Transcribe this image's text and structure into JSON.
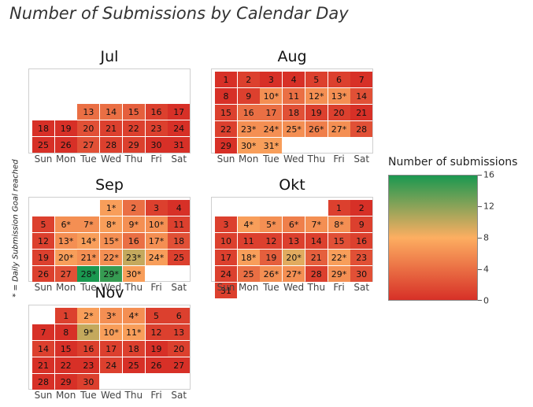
{
  "chart_data": {
    "type": "heatmap",
    "title": "Number of Submissions by Calendar Day",
    "side_note": "* = Daily Submission Goal reached",
    "weekdays": [
      "Sun",
      "Mon",
      "Tue",
      "Wed",
      "Thu",
      "Fri",
      "Sat"
    ],
    "colorbar": {
      "title": "Number of submissions",
      "range": [
        0,
        16
      ],
      "ticks": [
        "0",
        "4",
        "8",
        "12",
        "16"
      ],
      "colors": {
        "low": "#d73027",
        "mid": "#fdae61",
        "high": "#1a9850"
      }
    },
    "months": [
      {
        "name": "Jul",
        "first_weekday": 2,
        "days": [
          {
            "label": "13",
            "value": 4
          },
          {
            "label": "14",
            "value": 4
          },
          {
            "label": "15",
            "value": 3
          },
          {
            "label": "16",
            "value": 1
          },
          {
            "label": "17",
            "value": 0
          },
          {
            "label": "18",
            "value": 0
          },
          {
            "label": "19",
            "value": 0
          },
          {
            "label": "20",
            "value": 2
          },
          {
            "label": "21",
            "value": 1
          },
          {
            "label": "22",
            "value": 1
          },
          {
            "label": "23",
            "value": 1
          },
          {
            "label": "24",
            "value": 0
          },
          {
            "label": "25",
            "value": 0
          },
          {
            "label": "26",
            "value": 0
          },
          {
            "label": "27",
            "value": 2
          },
          {
            "label": "28",
            "value": 1
          },
          {
            "label": "29",
            "value": 1
          },
          {
            "label": "30",
            "value": 0
          },
          {
            "label": "31",
            "value": 0
          }
        ]
      },
      {
        "name": "Aug",
        "first_weekday": 0,
        "days": [
          {
            "label": "1",
            "value": 0
          },
          {
            "label": "2",
            "value": 1
          },
          {
            "label": "3",
            "value": 0
          },
          {
            "label": "4",
            "value": 0
          },
          {
            "label": "5",
            "value": 1
          },
          {
            "label": "6",
            "value": 1
          },
          {
            "label": "7",
            "value": 0
          },
          {
            "label": "8",
            "value": 0
          },
          {
            "label": "9",
            "value": 1
          },
          {
            "label": "10*",
            "value": 6
          },
          {
            "label": "11",
            "value": 4
          },
          {
            "label": "12*",
            "value": 6
          },
          {
            "label": "13*",
            "value": 6
          },
          {
            "label": "14",
            "value": 2
          },
          {
            "label": "15",
            "value": 1
          },
          {
            "label": "16",
            "value": 4
          },
          {
            "label": "17",
            "value": 4
          },
          {
            "label": "18",
            "value": 2
          },
          {
            "label": "19",
            "value": 1
          },
          {
            "label": "20",
            "value": 1
          },
          {
            "label": "21",
            "value": 0
          },
          {
            "label": "22",
            "value": 1
          },
          {
            "label": "23*",
            "value": 6
          },
          {
            "label": "24*",
            "value": 6
          },
          {
            "label": "25*",
            "value": 6
          },
          {
            "label": "26*",
            "value": 5
          },
          {
            "label": "27*",
            "value": 6
          },
          {
            "label": "28",
            "value": 2
          },
          {
            "label": "29",
            "value": 0
          },
          {
            "label": "30*",
            "value": 7
          },
          {
            "label": "31*",
            "value": 7
          }
        ]
      },
      {
        "name": "Sep",
        "first_weekday": 3,
        "days": [
          {
            "label": "1*",
            "value": 7
          },
          {
            "label": "2",
            "value": 4
          },
          {
            "label": "3",
            "value": 1
          },
          {
            "label": "4",
            "value": 0
          },
          {
            "label": "5",
            "value": 1
          },
          {
            "label": "6*",
            "value": 6
          },
          {
            "label": "7*",
            "value": 6
          },
          {
            "label": "8*",
            "value": 7
          },
          {
            "label": "9*",
            "value": 6
          },
          {
            "label": "10*",
            "value": 6
          },
          {
            "label": "11",
            "value": 1
          },
          {
            "label": "12",
            "value": 1
          },
          {
            "label": "13*",
            "value": 6
          },
          {
            "label": "14*",
            "value": 7
          },
          {
            "label": "15*",
            "value": 6
          },
          {
            "label": "16",
            "value": 4
          },
          {
            "label": "17*",
            "value": 6
          },
          {
            "label": "18",
            "value": 2
          },
          {
            "label": "19",
            "value": 1
          },
          {
            "label": "20*",
            "value": 7
          },
          {
            "label": "21*",
            "value": 6
          },
          {
            "label": "22*",
            "value": 6
          },
          {
            "label": "23*",
            "value": 10
          },
          {
            "label": "24*",
            "value": 7
          },
          {
            "label": "25",
            "value": 1
          },
          {
            "label": "26",
            "value": 1
          },
          {
            "label": "27",
            "value": 2
          },
          {
            "label": "28*",
            "value": 16
          },
          {
            "label": "29*",
            "value": 15
          },
          {
            "label": "30*",
            "value": 7
          }
        ]
      },
      {
        "name": "Okt",
        "first_weekday": 5,
        "days": [
          {
            "label": "1",
            "value": 1
          },
          {
            "label": "2",
            "value": 0
          },
          {
            "label": "3",
            "value": 1
          },
          {
            "label": "4*",
            "value": 7
          },
          {
            "label": "5*",
            "value": 6
          },
          {
            "label": "6*",
            "value": 5
          },
          {
            "label": "7*",
            "value": 6
          },
          {
            "label": "8*",
            "value": 6
          },
          {
            "label": "9",
            "value": 1
          },
          {
            "label": "10",
            "value": 1
          },
          {
            "label": "11",
            "value": 1
          },
          {
            "label": "12",
            "value": 1
          },
          {
            "label": "13",
            "value": 1
          },
          {
            "label": "14",
            "value": 1
          },
          {
            "label": "15",
            "value": 2
          },
          {
            "label": "16",
            "value": 1
          },
          {
            "label": "17",
            "value": 1
          },
          {
            "label": "18*",
            "value": 7
          },
          {
            "label": "19",
            "value": 3
          },
          {
            "label": "20*",
            "value": 9
          },
          {
            "label": "21",
            "value": 3
          },
          {
            "label": "22*",
            "value": 7
          },
          {
            "label": "23",
            "value": 2
          },
          {
            "label": "24",
            "value": 1
          },
          {
            "label": "25",
            "value": 4
          },
          {
            "label": "26*",
            "value": 6
          },
          {
            "label": "27*",
            "value": 6
          },
          {
            "label": "28",
            "value": 1
          },
          {
            "label": "29*",
            "value": 6
          },
          {
            "label": "30",
            "value": 2
          },
          {
            "label": "31",
            "value": 1
          }
        ]
      },
      {
        "name": "Nov",
        "first_weekday": 1,
        "days": [
          {
            "label": "1",
            "value": 1
          },
          {
            "label": "2*",
            "value": 7
          },
          {
            "label": "3*",
            "value": 6
          },
          {
            "label": "4*",
            "value": 6
          },
          {
            "label": "5",
            "value": 1
          },
          {
            "label": "6",
            "value": 1
          },
          {
            "label": "7",
            "value": 0
          },
          {
            "label": "8",
            "value": 0
          },
          {
            "label": "9*",
            "value": 10
          },
          {
            "label": "10*",
            "value": 7
          },
          {
            "label": "11*",
            "value": 7
          },
          {
            "label": "12",
            "value": 1
          },
          {
            "label": "13",
            "value": 1
          },
          {
            "label": "14",
            "value": 1
          },
          {
            "label": "15",
            "value": 0
          },
          {
            "label": "16",
            "value": 1
          },
          {
            "label": "17",
            "value": 1
          },
          {
            "label": "18",
            "value": 1
          },
          {
            "label": "19",
            "value": 0
          },
          {
            "label": "20",
            "value": 1
          },
          {
            "label": "21",
            "value": 0
          },
          {
            "label": "22",
            "value": 0
          },
          {
            "label": "23",
            "value": 0
          },
          {
            "label": "24",
            "value": 1
          },
          {
            "label": "25",
            "value": 0
          },
          {
            "label": "26",
            "value": 0
          },
          {
            "label": "27",
            "value": 0
          },
          {
            "label": "28",
            "value": 0
          },
          {
            "label": "29",
            "value": 0
          },
          {
            "label": "30",
            "value": 1
          }
        ]
      }
    ]
  }
}
